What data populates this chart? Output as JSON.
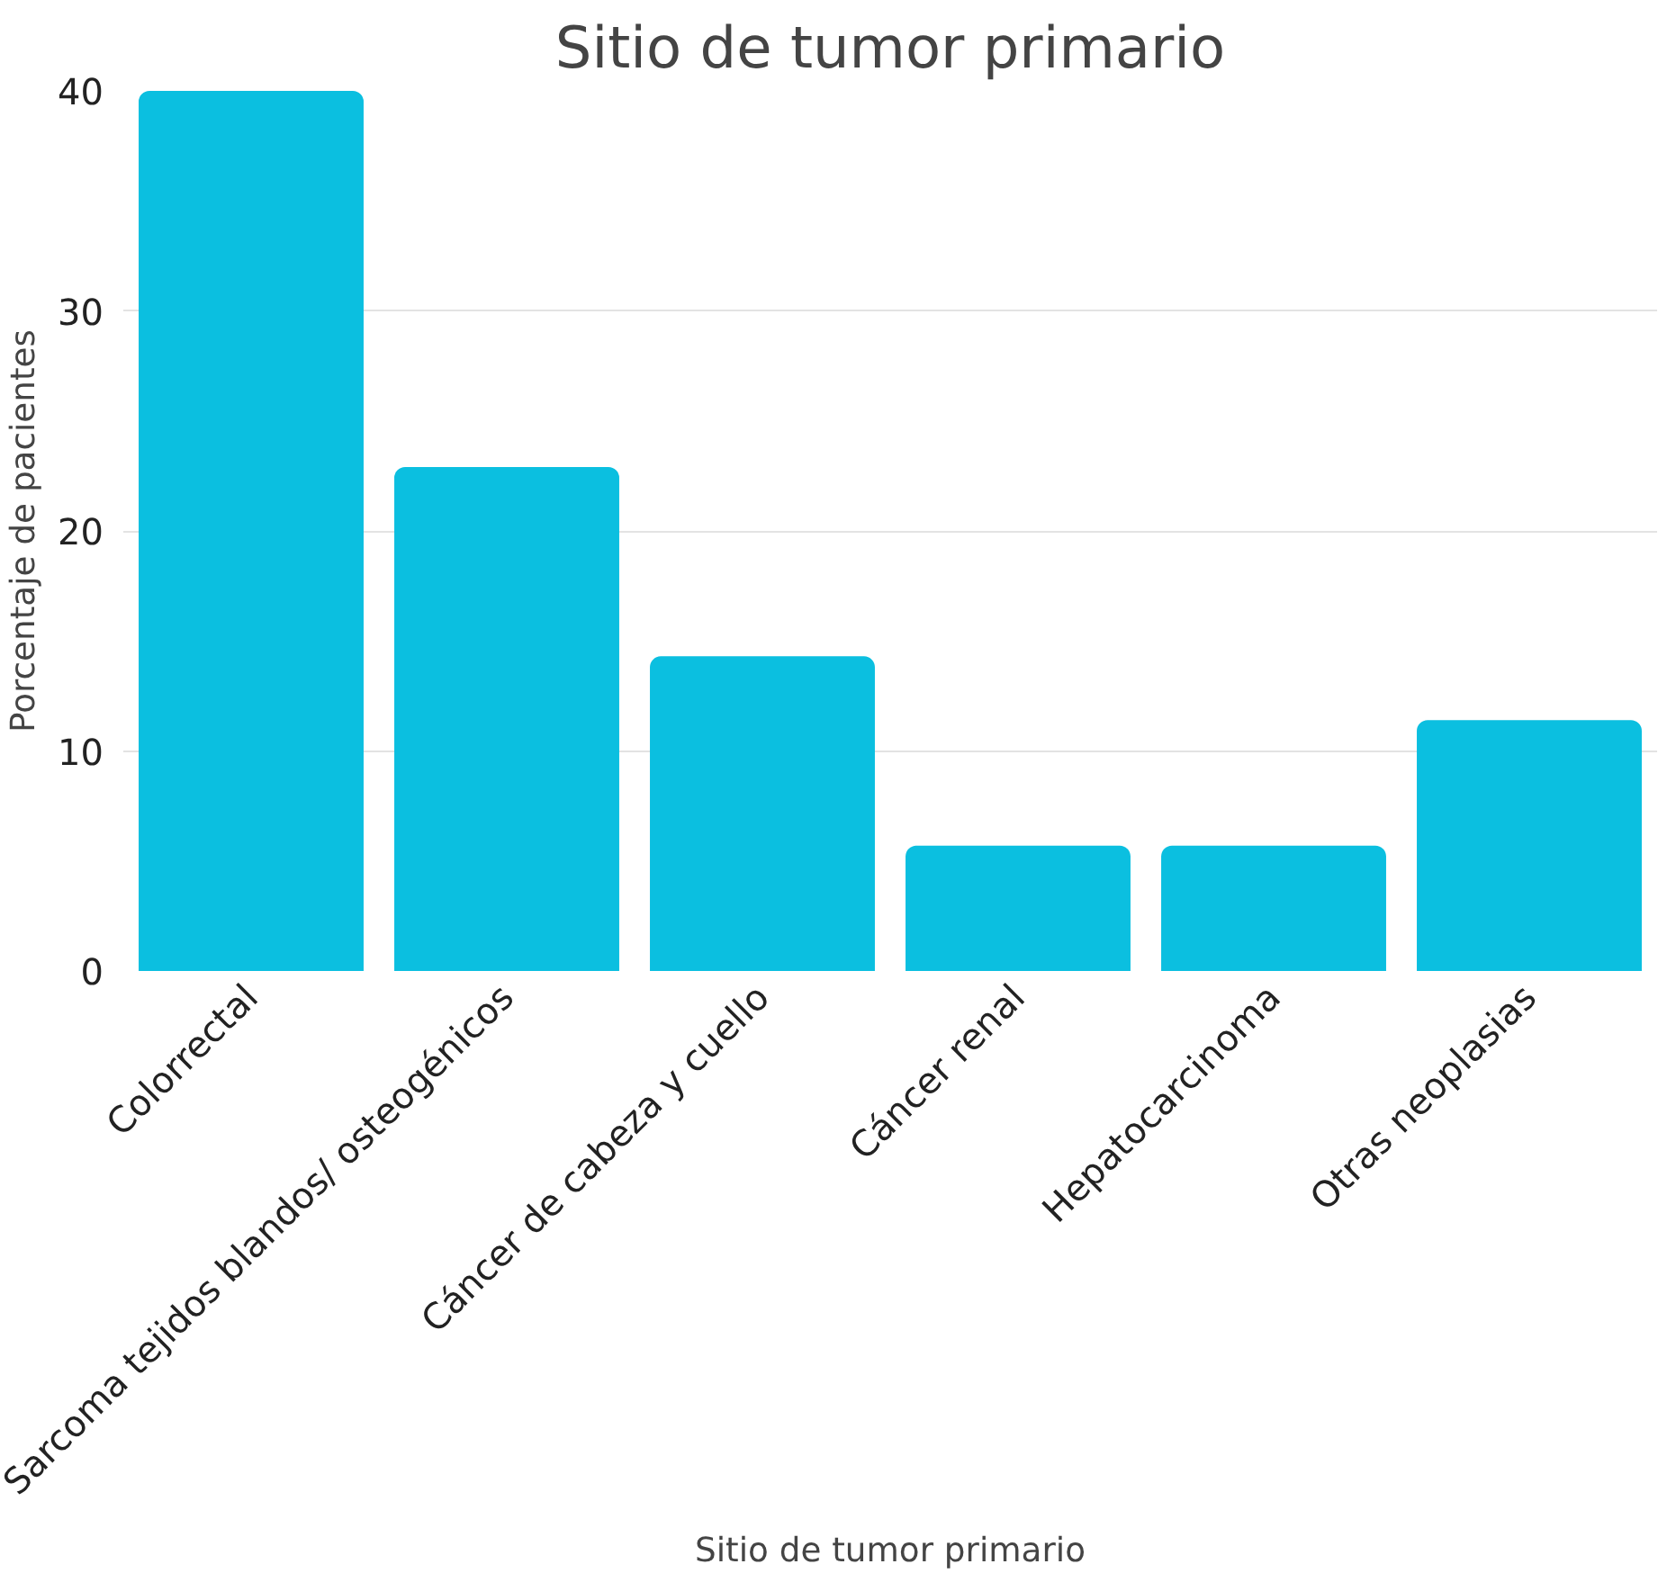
{
  "chart_data": {
    "type": "bar",
    "title": "Sitio de tumor primario",
    "xlabel": "Sitio de tumor primario",
    "ylabel": "Porcentaje de pacientes",
    "categories": [
      "Colorrectal",
      "Sarcoma tejidos blandos/ osteogénicos",
      "Cáncer de cabeza y cuello",
      "Cáncer renal",
      "Hepatocarcinoma",
      "Otras neoplasias"
    ],
    "values": [
      40,
      22.9,
      14.3,
      5.7,
      5.7,
      11.4
    ],
    "color": "#0bbfe0",
    "ylim": [
      0,
      40
    ],
    "yticks": [
      0,
      10,
      20,
      30,
      40
    ],
    "grid": "y"
  }
}
